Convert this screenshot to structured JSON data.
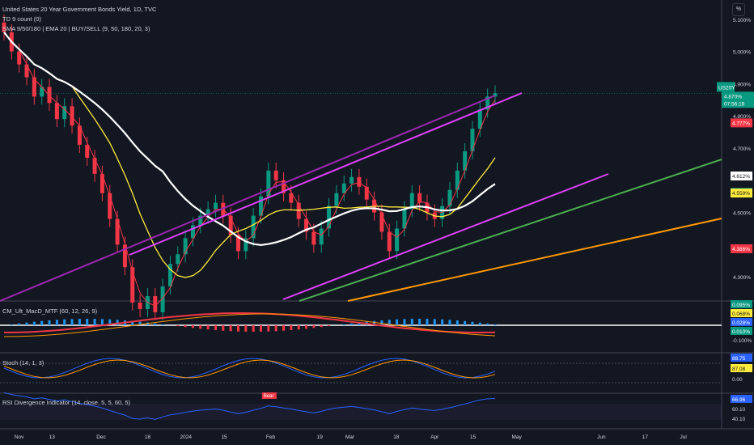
{
  "header": {
    "title": "United States 20 Year Government Bonds Yield, 1D, TVC",
    "indicator1": "TD 9 count (0)",
    "indicator2": "SMA 9/50/180 | EMA 20 | BUY/SELL (9, 50, 180, 20, 3)"
  },
  "percent_button": "%",
  "symbol_tag": {
    "label": "US20Y",
    "price": "4.870%",
    "countdown": "07:56:19"
  },
  "price_labels": [
    {
      "text": "4.777%",
      "color": "#f23645",
      "value": 4.777
    },
    {
      "text": "4.612%",
      "color": "#ffffff",
      "value": 4.612
    },
    {
      "text": "4.561%",
      "color": "#089981",
      "value": 4.561
    },
    {
      "text": "4.559%",
      "color": "#ffeb3b",
      "value": 4.559
    },
    {
      "text": "4.386%",
      "color": "#f23645",
      "value": 4.386
    }
  ],
  "panels": {
    "macd": {
      "title": "CM_Ult_MacD_MTF (60, 12, 26, 9)",
      "labels": [
        {
          "text": "0.095%",
          "color": "#089981"
        },
        {
          "text": "0.068%",
          "color": "#ffeb3b"
        },
        {
          "text": "0.028%",
          "color": "#2962ff"
        },
        {
          "text": "0.010%",
          "color": "#089981"
        },
        {
          "text": "-0.100%",
          "color": "none"
        }
      ]
    },
    "stoch": {
      "title": "Stoch (14, 1, 3)",
      "labels": [
        {
          "text": "88.75",
          "color": "#2962ff"
        },
        {
          "text": "87.08",
          "color": "#ffeb3b"
        },
        {
          "text": "0.00",
          "color": "none"
        }
      ]
    },
    "rsi": {
      "title": "RSI Divergence Indicator (14, close, 5, 5, 60, 5)",
      "bear_label": "Bear",
      "labels": [
        {
          "text": "66.96",
          "color": "#2962ff"
        },
        {
          "text": "60.10",
          "color": "none"
        },
        {
          "text": "40.10",
          "color": "none"
        }
      ]
    }
  },
  "chart_data": {
    "type": "candlestick",
    "title": "United States 20 Year Government Bonds Yield, 1D, TVC",
    "y_axis_ticks": [
      "5.100%",
      "5.000%",
      "4.900%",
      "4.800%",
      "4.700%",
      "4.500%",
      "4.300%"
    ],
    "y_tick_values": [
      5.1,
      5.0,
      4.9,
      4.8,
      4.7,
      4.5,
      4.3
    ],
    "x_axis_ticks": [
      "Nov",
      "13",
      "Dec",
      "18",
      "2024",
      "15",
      "Feb",
      "19",
      "Mar",
      "18",
      "Apr",
      "15",
      "May",
      "Jun",
      "17",
      "Jul"
    ],
    "x_tick_dates": [
      "2023-11-01",
      "2023-11-13",
      "2023-12-01",
      "2023-12-18",
      "2024-01-01",
      "2024-01-15",
      "2024-02-01",
      "2024-02-19",
      "2024-03-01",
      "2024-03-18",
      "2024-04-01",
      "2024-04-15",
      "2024-05-01",
      "2024-06-01",
      "2024-06-17",
      "2024-07-01"
    ],
    "ylim": [
      4.23,
      5.16
    ],
    "last_price": 4.87,
    "close_series": [
      5.06,
      5.0,
      4.96,
      4.92,
      4.86,
      4.89,
      4.84,
      4.79,
      4.83,
      4.77,
      4.71,
      4.67,
      4.62,
      4.56,
      4.48,
      4.4,
      4.33,
      4.22,
      4.2,
      4.24,
      4.19,
      4.27,
      4.34,
      4.37,
      4.42,
      4.46,
      4.49,
      4.51,
      4.53,
      4.49,
      4.43,
      4.38,
      4.42,
      4.49,
      4.55,
      4.63,
      4.6,
      4.56,
      4.53,
      4.48,
      4.44,
      4.4,
      4.45,
      4.52,
      4.56,
      4.59,
      4.61,
      4.58,
      4.54,
      4.5,
      4.44,
      4.38,
      4.45,
      4.51,
      4.56,
      4.53,
      4.5,
      4.48,
      4.52,
      4.57,
      4.63,
      4.69,
      4.76,
      4.82,
      4.86,
      4.87
    ]
  }
}
